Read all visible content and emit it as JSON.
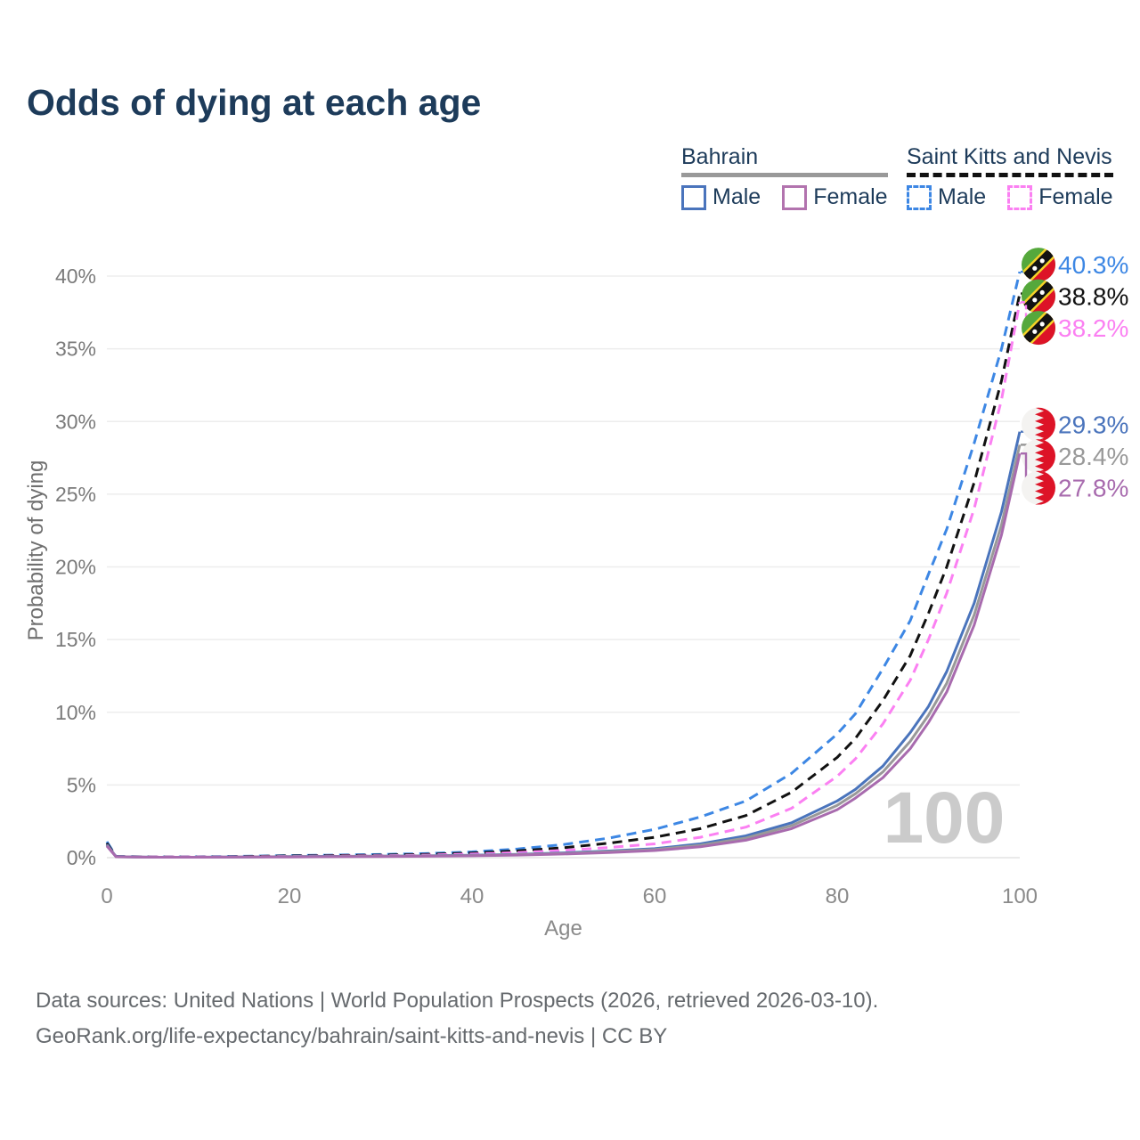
{
  "title": "Odds of dying at each age",
  "watermark": "100",
  "legend": {
    "groups": [
      {
        "country": "Bahrain",
        "line_style": "solid",
        "underline_color": "#999999",
        "items": [
          {
            "label": "Male",
            "color": "#4a74bc",
            "dashed": false
          },
          {
            "label": "Female",
            "color": "#b273ae",
            "dashed": false
          }
        ]
      },
      {
        "country": "Saint Kitts and Nevis",
        "line_style": "dashed",
        "underline_color": "#111111",
        "items": [
          {
            "label": "Male",
            "color": "#3d87e4",
            "dashed": true
          },
          {
            "label": "Female",
            "color": "#fb80f2",
            "dashed": true
          }
        ]
      }
    ]
  },
  "footer": {
    "line1": "Data sources: United Nations | World Population Prospects (2026, retrieved 2026-03-10).",
    "line2": "GeoRank.org/life-expectancy/bahrain/saint-kitts-and-nevis | CC BY"
  },
  "chart_data": {
    "type": "line",
    "title": "Odds of dying at each age",
    "xlabel": "Age",
    "ylabel": "Probability of dying",
    "x_ticks": [
      0,
      20,
      40,
      60,
      80,
      100
    ],
    "y_ticks_percent": [
      0,
      5,
      10,
      15,
      20,
      25,
      30,
      35,
      40
    ],
    "xlim": [
      0,
      100
    ],
    "ylim_percent": [
      0,
      41
    ],
    "grid": "horizontal",
    "legend_position": "top-right",
    "age_marker": "100",
    "ages": [
      0,
      1,
      5,
      10,
      15,
      20,
      25,
      30,
      35,
      40,
      45,
      50,
      55,
      60,
      65,
      70,
      75,
      80,
      82,
      85,
      88,
      90,
      92,
      95,
      98,
      100
    ],
    "series": [
      {
        "name": "Saint Kitts and Nevis — Male",
        "country": "Saint Kitts and Nevis",
        "sex": "male",
        "color": "#3d87e4",
        "dashed": true,
        "flag": "skn",
        "end_label": "40.3%",
        "values": [
          1.1,
          0.09,
          0.05,
          0.06,
          0.1,
          0.15,
          0.18,
          0.22,
          0.28,
          0.4,
          0.6,
          0.9,
          1.35,
          1.95,
          2.8,
          3.9,
          5.8,
          8.5,
          9.9,
          13.0,
          16.3,
          19.5,
          22.6,
          28.5,
          35.0,
          40.3
        ]
      },
      {
        "name": "Saint Kitts and Nevis — Both sexes",
        "country": "Saint Kitts and Nevis",
        "sex": "both",
        "color": "#111111",
        "dashed": true,
        "flag": "skn",
        "end_label": "38.8%",
        "values": [
          1.0,
          0.08,
          0.05,
          0.05,
          0.08,
          0.12,
          0.15,
          0.18,
          0.23,
          0.32,
          0.47,
          0.68,
          1.0,
          1.4,
          2.0,
          2.9,
          4.5,
          6.9,
          8.2,
          10.8,
          13.9,
          16.8,
          20.0,
          25.8,
          32.8,
          38.8
        ]
      },
      {
        "name": "Saint Kitts and Nevis — Female",
        "country": "Saint Kitts and Nevis",
        "sex": "female",
        "color": "#fb80f2",
        "dashed": true,
        "flag": "skn",
        "end_label": "38.2%",
        "values": [
          0.9,
          0.07,
          0.04,
          0.04,
          0.06,
          0.09,
          0.11,
          0.14,
          0.18,
          0.25,
          0.35,
          0.5,
          0.7,
          0.95,
          1.4,
          2.1,
          3.4,
          5.6,
          6.8,
          9.2,
          12.2,
          15.0,
          18.2,
          24.0,
          31.5,
          38.2
        ]
      },
      {
        "name": "Bahrain — Male",
        "country": "Bahrain",
        "sex": "male",
        "color": "#4a74bc",
        "dashed": false,
        "flag": "bh",
        "end_label": "29.3%",
        "values": [
          0.9,
          0.07,
          0.03,
          0.03,
          0.05,
          0.08,
          0.09,
          0.11,
          0.13,
          0.17,
          0.23,
          0.33,
          0.46,
          0.62,
          0.95,
          1.5,
          2.4,
          3.9,
          4.7,
          6.3,
          8.6,
          10.4,
          12.8,
          17.5,
          23.8,
          29.3
        ]
      },
      {
        "name": "Bahrain — Both sexes",
        "country": "Bahrain",
        "sex": "both",
        "color": "#999999",
        "dashed": false,
        "flag": "bh",
        "end_label": "28.4%",
        "values": [
          0.85,
          0.06,
          0.03,
          0.03,
          0.04,
          0.07,
          0.08,
          0.1,
          0.12,
          0.15,
          0.21,
          0.29,
          0.41,
          0.56,
          0.85,
          1.35,
          2.2,
          3.6,
          4.4,
          5.9,
          8.0,
          9.8,
          12.0,
          16.7,
          22.9,
          28.4
        ]
      },
      {
        "name": "Bahrain — Female",
        "country": "Bahrain",
        "sex": "female",
        "color": "#a86bae",
        "dashed": false,
        "flag": "bh",
        "end_label": "27.8%",
        "values": [
          0.8,
          0.06,
          0.03,
          0.03,
          0.04,
          0.05,
          0.07,
          0.08,
          0.1,
          0.13,
          0.18,
          0.25,
          0.35,
          0.49,
          0.75,
          1.2,
          2.0,
          3.3,
          4.1,
          5.5,
          7.5,
          9.3,
          11.4,
          16.0,
          22.2,
          27.8
        ]
      }
    ],
    "flag_colors": {
      "skn": {
        "green": "#55a83c",
        "red": "#dd1327",
        "yellow": "#f5d327",
        "black": "#121212",
        "star": "#ffffff"
      },
      "bh": {
        "red": "#dd1327",
        "white": "#f4f3f1"
      }
    }
  }
}
